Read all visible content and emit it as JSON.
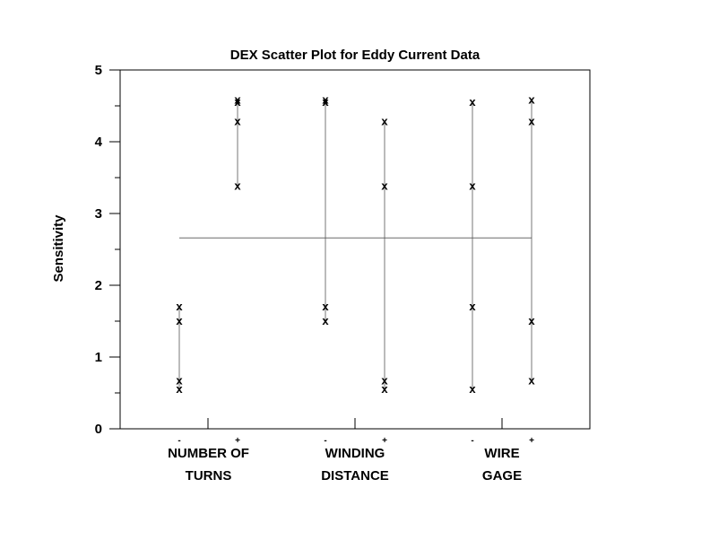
{
  "chart_data": {
    "type": "scatter",
    "title": "DEX Scatter Plot for Eddy Current Data",
    "ylabel": "Sensitivity",
    "xlabel": "",
    "ylim": [
      0,
      5
    ],
    "yticks": [
      "0",
      "1",
      "2",
      "3",
      "4",
      "5"
    ],
    "marker": "x",
    "grand_mean": 2.66,
    "factors": [
      {
        "name_line1": "NUMBER OF",
        "name_line2": "TURNS",
        "levels": [
          {
            "label": "-",
            "values": [
              1.7,
              1.5,
              0.67,
              0.55
            ]
          },
          {
            "label": "+",
            "values": [
              4.58,
              4.55,
              4.28,
              3.38
            ]
          }
        ]
      },
      {
        "name_line1": "WINDING",
        "name_line2": "DISTANCE",
        "levels": [
          {
            "label": "-",
            "values": [
              4.58,
              4.55,
              1.7,
              1.5
            ]
          },
          {
            "label": "+",
            "values": [
              4.28,
              3.38,
              0.67,
              0.55
            ]
          }
        ]
      },
      {
        "name_line1": "WIRE",
        "name_line2": "GAGE",
        "levels": [
          {
            "label": "-",
            "values": [
              4.55,
              3.38,
              1.7,
              0.55
            ]
          },
          {
            "label": "+",
            "values": [
              4.58,
              4.28,
              1.5,
              0.67
            ]
          }
        ]
      }
    ]
  }
}
